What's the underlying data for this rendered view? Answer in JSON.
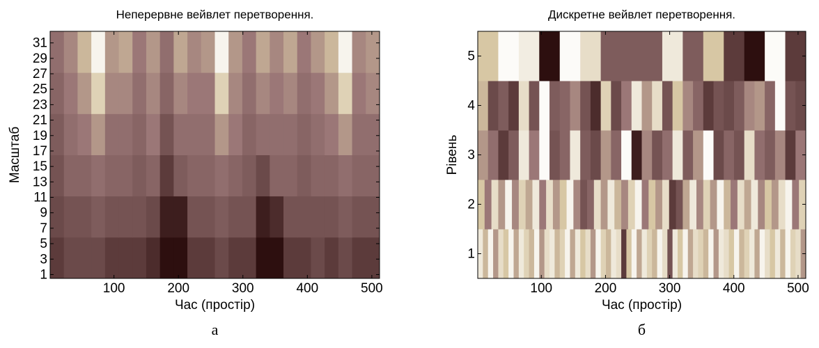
{
  "chart_data": [
    {
      "type": "heatmap",
      "title": "Неперервне вейвлет перетворення.",
      "xlabel": "Час (простір)",
      "ylabel": "Масштаб",
      "caption": "а",
      "xlim": [
        1,
        512
      ],
      "ylim": [
        0.5,
        32.5
      ],
      "xticks": [
        100,
        200,
        300,
        400,
        500
      ],
      "yticks": [
        1,
        3,
        5,
        7,
        9,
        11,
        13,
        15,
        17,
        19,
        21,
        23,
        25,
        27,
        29,
        31
      ],
      "colormap": [
        "#1e0000",
        "#6b4a4a",
        "#9b7777",
        "#d7c7a4",
        "#ffffff"
      ],
      "z": [
        [
          0.2,
          0.25,
          0.25,
          0.25,
          0.2,
          0.2,
          0.2,
          0.15,
          0.05,
          0.05,
          0.2,
          0.2,
          0.25,
          0.2,
          0.2,
          0.05,
          0.05,
          0.2,
          0.2,
          0.25,
          0.2,
          0.25,
          0.2,
          0.2
        ],
        [
          0.25,
          0.3,
          0.3,
          0.35,
          0.3,
          0.3,
          0.3,
          0.25,
          0.1,
          0.1,
          0.3,
          0.3,
          0.35,
          0.3,
          0.3,
          0.1,
          0.15,
          0.3,
          0.3,
          0.3,
          0.3,
          0.35,
          0.3,
          0.3
        ],
        [
          0.3,
          0.4,
          0.4,
          0.45,
          0.4,
          0.4,
          0.35,
          0.4,
          0.2,
          0.35,
          0.4,
          0.4,
          0.45,
          0.4,
          0.35,
          0.25,
          0.4,
          0.4,
          0.35,
          0.4,
          0.4,
          0.45,
          0.4,
          0.4
        ],
        [
          0.35,
          0.45,
          0.5,
          0.6,
          0.45,
          0.45,
          0.4,
          0.5,
          0.3,
          0.45,
          0.45,
          0.45,
          0.6,
          0.5,
          0.4,
          0.45,
          0.45,
          0.45,
          0.4,
          0.45,
          0.5,
          0.6,
          0.45,
          0.45
        ],
        [
          0.4,
          0.5,
          0.6,
          0.8,
          0.55,
          0.55,
          0.45,
          0.55,
          0.4,
          0.55,
          0.5,
          0.5,
          0.8,
          0.55,
          0.45,
          0.55,
          0.5,
          0.55,
          0.45,
          0.5,
          0.6,
          0.8,
          0.5,
          0.55
        ],
        [
          0.45,
          0.55,
          0.7,
          0.95,
          0.6,
          0.65,
          0.5,
          0.6,
          0.45,
          0.65,
          0.55,
          0.6,
          0.95,
          0.6,
          0.5,
          0.65,
          0.55,
          0.65,
          0.5,
          0.6,
          0.7,
          0.95,
          0.55,
          0.6
        ]
      ]
    },
    {
      "type": "heatmap",
      "title": "Дискретне вейвлет перетворення.",
      "xlabel": "Час (простір)",
      "ylabel": "Рівень",
      "caption": "б",
      "xlim": [
        1,
        512
      ],
      "ylim": [
        0.5,
        5.5
      ],
      "xticks": [
        100,
        200,
        300,
        400,
        500
      ],
      "yticks": [
        1,
        2,
        3,
        4,
        5
      ],
      "colormap": [
        "#1e0000",
        "#6b4a4a",
        "#9b7777",
        "#d7c7a4",
        "#ffffff"
      ],
      "z": [
        [
          0.9,
          0.7,
          0.95,
          0.6,
          0.85,
          0.75,
          0.95,
          0.65,
          0.9,
          0.8,
          0.7,
          0.95,
          0.6,
          0.85,
          0.9,
          0.7,
          0.8,
          0.95,
          0.65,
          0.9,
          0.75,
          0.85,
          0.6,
          0.95,
          0.8,
          0.7,
          0.9,
          0.85,
          0.2,
          0.75,
          0.95,
          0.65,
          0.9,
          0.8,
          0.7,
          0.95,
          0.85,
          0.3,
          0.9,
          0.75,
          0.95,
          0.65,
          0.85,
          0.8,
          0.7,
          0.95,
          0.6,
          0.9,
          0.85,
          0.75,
          0.95,
          0.7,
          0.8,
          0.9,
          0.65,
          0.95,
          0.85,
          0.75,
          0.9,
          0.7,
          0.95,
          0.8,
          0.85,
          0.6
        ],
        [
          0.75,
          0.5,
          0.85,
          0.6,
          0.95,
          0.55,
          0.8,
          0.65,
          0.9,
          0.5,
          0.85,
          0.6,
          0.75,
          0.95,
          0.55,
          0.3,
          0.4,
          0.85,
          0.6,
          0.9,
          0.7,
          0.55,
          0.8,
          0.95,
          0.5,
          0.75,
          0.6,
          0.85,
          0.2,
          0.3,
          0.65,
          0.9,
          0.55,
          0.8,
          0.6,
          0.95,
          0.7,
          0.5,
          0.85,
          0.65,
          0.9,
          0.55,
          0.75,
          0.6,
          0.85,
          0.95,
          0.5,
          0.8
        ],
        [
          0.6,
          0.45,
          0.2,
          0.35,
          0.9,
          0.5,
          0.98,
          0.3,
          0.4,
          0.9,
          0.35,
          0.25,
          0.6,
          0.4,
          0.98,
          0.1,
          0.55,
          0.3,
          0.45,
          0.9,
          0.35,
          0.6,
          0.98,
          0.25,
          0.4,
          0.3,
          0.85,
          0.45,
          0.35,
          0.55,
          0.2,
          0.5
        ],
        [
          0.7,
          0.25,
          0.35,
          0.2,
          0.85,
          0.3,
          0.98,
          0.35,
          0.4,
          0.55,
          0.3,
          0.15,
          0.8,
          0.25,
          0.5,
          0.9,
          0.6,
          0.85,
          0.3,
          0.75,
          0.55,
          0.4,
          0.2,
          0.3,
          0.25,
          0.35,
          0.55,
          0.6,
          0.4,
          0.98,
          0.3,
          0.25
        ],
        [
          0.75,
          0.98,
          0.92,
          0.05,
          0.98,
          0.85,
          0.35,
          0.35,
          0.35,
          0.9,
          0.35,
          0.75,
          0.2,
          0.05,
          0.98,
          0.2
        ]
      ]
    }
  ]
}
